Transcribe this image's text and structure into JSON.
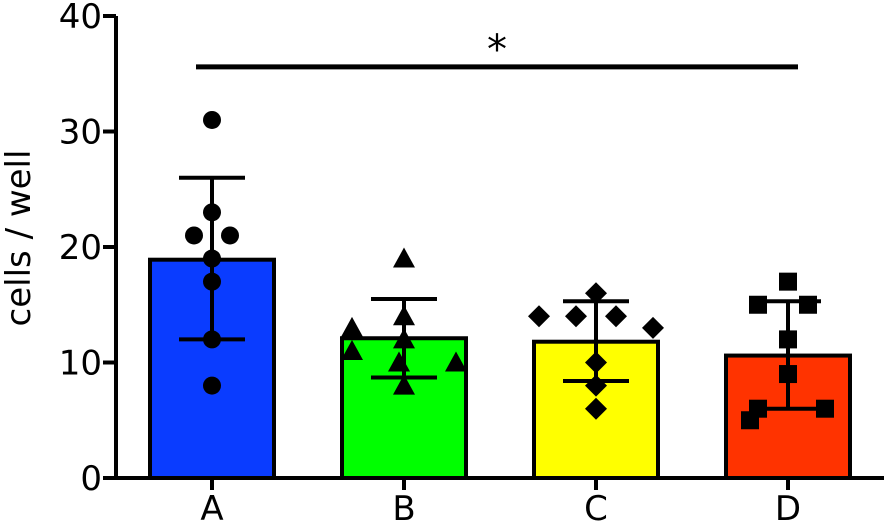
{
  "chart_data": {
    "type": "bar",
    "categories": [
      "A",
      "B",
      "C",
      "D"
    ],
    "ylabel": "cells / well",
    "xlabel": "",
    "ylim": [
      0,
      40
    ],
    "yticks": [
      "0",
      "10",
      "20",
      "30",
      "40"
    ],
    "grid": false,
    "series": [
      {
        "values": [
          18.9,
          12.1,
          11.8,
          10.6
        ],
        "error_upper": [
          26.0,
          15.5,
          15.3,
          15.3
        ],
        "error_lower": [
          12.0,
          8.7,
          8.4,
          6.0
        ],
        "colors": [
          "#0a3cff",
          "#00ff00",
          "#ffff00",
          "#ff3300"
        ],
        "markers": [
          "circle",
          "triangle",
          "diamond",
          "square"
        ],
        "points": [
          [
            31,
            23,
            21,
            21,
            19,
            17,
            12,
            8
          ],
          [
            19,
            14,
            13,
            12,
            11,
            10,
            10,
            8
          ],
          [
            16,
            14,
            14,
            14,
            13,
            10,
            8,
            6
          ],
          [
            17,
            15,
            15,
            12,
            9,
            6,
            6,
            5
          ]
        ]
      }
    ],
    "annotations": [
      {
        "type": "significance",
        "from": "A",
        "to": "D",
        "y": 35.6,
        "label": "*"
      }
    ]
  }
}
